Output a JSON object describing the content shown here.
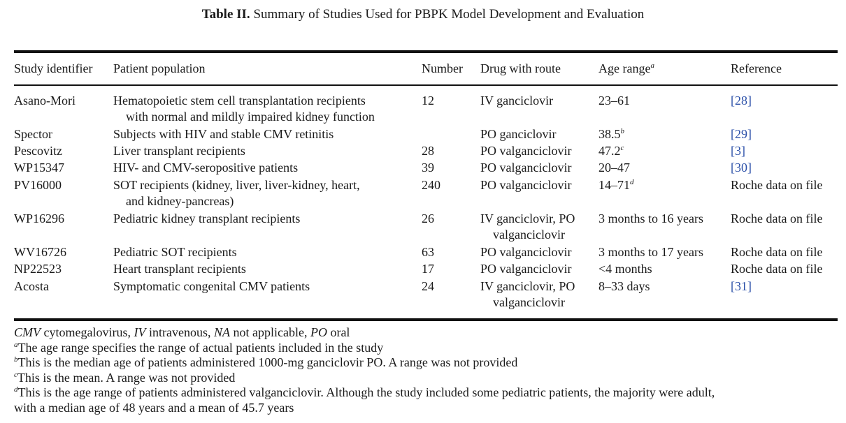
{
  "caption": {
    "label": "Table II.",
    "title": "Summary of Studies Used for PBPK Model Development and Evaluation"
  },
  "headers": {
    "study": "Study identifier",
    "population": "Patient population",
    "number": "Number",
    "drug": "Drug with route",
    "age": "Age range",
    "age_sup": "a",
    "reference": "Reference"
  },
  "rows": [
    {
      "study": "Asano-Mori",
      "population": [
        "Hematopoietic stem cell transplantation recipients",
        "with normal and mildly impaired kidney function"
      ],
      "number": "12",
      "drug": [
        "IV ganciclovir"
      ],
      "age": "23–61",
      "age_sup": "",
      "reference": "[28]",
      "ref_link": true
    },
    {
      "study": "Spector",
      "population": [
        "Subjects with HIV and stable CMV retinitis"
      ],
      "number": "",
      "drug": [
        "PO ganciclovir"
      ],
      "age": "38.5",
      "age_sup": "b",
      "reference": "[29]",
      "ref_link": true
    },
    {
      "study": "Pescovitz",
      "population": [
        "Liver transplant recipients"
      ],
      "number": "28",
      "drug": [
        "PO valganciclovir"
      ],
      "age": "47.2",
      "age_sup": "c",
      "reference": "[3]",
      "ref_link": true
    },
    {
      "study": "WP15347",
      "population": [
        "HIV- and CMV-seropositive patients"
      ],
      "number": "39",
      "drug": [
        "PO valganciclovir"
      ],
      "age": "20–47",
      "age_sup": "",
      "reference": "[30]",
      "ref_link": true
    },
    {
      "study": "PV16000",
      "population": [
        "SOT recipients (kidney, liver, liver-kidney, heart,",
        "and kidney-pancreas)"
      ],
      "number": "240",
      "drug": [
        "PO valganciclovir"
      ],
      "age": "14–71",
      "age_sup": "d",
      "reference": "Roche data on file",
      "ref_link": false
    },
    {
      "study": "WP16296",
      "population": [
        "Pediatric kidney transplant recipients"
      ],
      "number": "26",
      "drug": [
        "IV ganciclovir, PO",
        "valganciclovir"
      ],
      "age": "3 months to 16 years",
      "age_sup": "",
      "reference": "Roche data on file",
      "ref_link": false
    },
    {
      "study": "WV16726",
      "population": [
        "Pediatric SOT recipients"
      ],
      "number": "63",
      "drug": [
        "PO valganciclovir"
      ],
      "age": "3 months to 17 years",
      "age_sup": "",
      "reference": "Roche data on file",
      "ref_link": false
    },
    {
      "study": "NP22523",
      "population": [
        "Heart transplant recipients"
      ],
      "number": "17",
      "drug": [
        "PO valganciclovir"
      ],
      "age": "<4 months",
      "age_sup": "",
      "reference": "Roche data on file",
      "ref_link": false
    },
    {
      "study": "Acosta",
      "population": [
        "Symptomatic congenital CMV patients"
      ],
      "number": "24",
      "drug": [
        "IV ganciclovir, PO",
        "valganciclovir"
      ],
      "age": "8–33 days",
      "age_sup": "",
      "reference": "[31]",
      "ref_link": true
    }
  ],
  "abbreviations": [
    {
      "abbr": "CMV",
      "text": " cytomegalovirus, "
    },
    {
      "abbr": "IV",
      "text": " intravenous, "
    },
    {
      "abbr": "NA",
      "text": " not applicable, "
    },
    {
      "abbr": "PO",
      "text": " oral"
    }
  ],
  "footnotes": [
    {
      "mark": "a",
      "lines": [
        "The age range specifies the range of actual patients included in the study"
      ]
    },
    {
      "mark": "b",
      "lines": [
        "This is the median age of patients administered 1000-mg ganciclovir PO. A range was not provided"
      ]
    },
    {
      "mark": "c",
      "lines": [
        "This is the mean. A range was not provided"
      ]
    },
    {
      "mark": "d",
      "lines": [
        "This is the age range of patients administered valganciclovir. Although the study included some pediatric patients, the majority were adult,",
        "with a median age of 48 years and a mean of 45.7 years"
      ]
    }
  ]
}
